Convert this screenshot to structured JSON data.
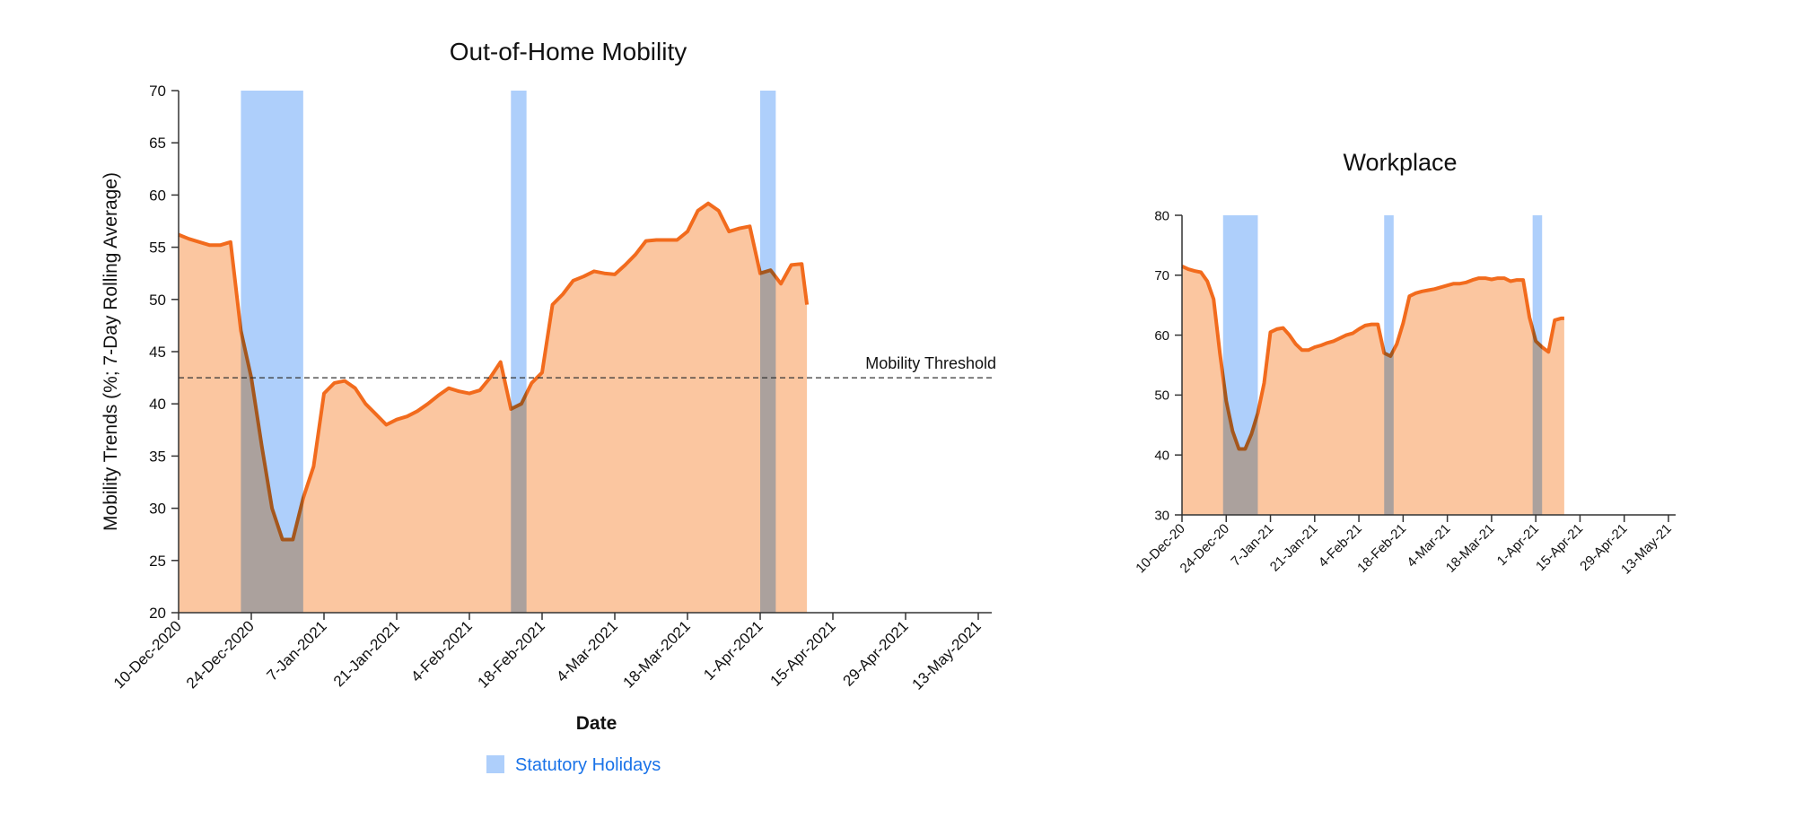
{
  "chart_data": [
    {
      "type": "area",
      "title": "Out-of-Home Mobility",
      "x_label": "Date",
      "y_label": "Mobility Trends (%; 7-Day Rolling Average)",
      "x": [
        "2020-12-10",
        "2020-12-12",
        "2020-12-14",
        "2020-12-16",
        "2020-12-18",
        "2020-12-20",
        "2020-12-22",
        "2020-12-24",
        "2020-12-26",
        "2020-12-28",
        "2020-12-30",
        "2021-01-01",
        "2021-01-03",
        "2021-01-05",
        "2021-01-07",
        "2021-01-09",
        "2021-01-11",
        "2021-01-13",
        "2021-01-15",
        "2021-01-17",
        "2021-01-19",
        "2021-01-21",
        "2021-01-23",
        "2021-01-25",
        "2021-01-27",
        "2021-01-29",
        "2021-01-31",
        "2021-02-02",
        "2021-02-04",
        "2021-02-06",
        "2021-02-08",
        "2021-02-10",
        "2021-02-12",
        "2021-02-14",
        "2021-02-16",
        "2021-02-18",
        "2021-02-20",
        "2021-02-22",
        "2021-02-24",
        "2021-02-26",
        "2021-02-28",
        "2021-03-02",
        "2021-03-04",
        "2021-03-06",
        "2021-03-08",
        "2021-03-10",
        "2021-03-12",
        "2021-03-14",
        "2021-03-16",
        "2021-03-18",
        "2021-03-20",
        "2021-03-22",
        "2021-03-24",
        "2021-03-26",
        "2021-03-28",
        "2021-03-30",
        "2021-04-01",
        "2021-04-03",
        "2021-04-05",
        "2021-04-07",
        "2021-04-09",
        "2021-04-10"
      ],
      "series": [
        {
          "color": "#f26b1d",
          "fill": "#fbc6a0",
          "values": [
            56.2,
            55.8,
            55.5,
            55.2,
            55.2,
            55.5,
            47,
            42.5,
            36,
            30,
            27,
            27,
            31,
            34,
            41,
            42,
            42.2,
            41.5,
            40,
            39,
            38,
            38.5,
            38.8,
            39.3,
            40,
            40.8,
            41.5,
            41.2,
            41,
            41.3,
            42.5,
            44,
            39.5,
            40,
            42,
            43,
            49.5,
            50.5,
            51.8,
            52.2,
            52.7,
            52.5,
            52.4,
            53.3,
            54.3,
            55.6,
            55.7,
            55.7,
            55.7,
            56.5,
            58.5,
            59.2,
            58.5,
            56.5,
            56.8,
            57,
            52.5,
            52.8,
            51.5,
            53.3,
            53.4,
            49.5
          ]
        }
      ],
      "holidays": [
        [
          "2020-12-22",
          "2021-01-03"
        ],
        [
          "2021-02-12",
          "2021-02-15"
        ],
        [
          "2021-04-01",
          "2021-04-04"
        ]
      ],
      "holiday_color": "#aecffb",
      "threshold": {
        "value": 42.5,
        "label": "Mobility Threshold"
      },
      "xlim": [
        "2020-12-10",
        "2021-05-13"
      ],
      "xticks": [
        {
          "value": "2020-12-10",
          "label": "10-Dec-2020"
        },
        {
          "value": "2020-12-24",
          "label": "24-Dec-2020"
        },
        {
          "value": "2021-01-07",
          "label": "7-Jan-2021"
        },
        {
          "value": "2021-01-21",
          "label": "21-Jan-2021"
        },
        {
          "value": "2021-02-04",
          "label": "4-Feb-2021"
        },
        {
          "value": "2021-02-18",
          "label": "18-Feb-2021"
        },
        {
          "value": "2021-03-04",
          "label": "4-Mar-2021"
        },
        {
          "value": "2021-03-18",
          "label": "18-Mar-2021"
        },
        {
          "value": "2021-04-01",
          "label": "1-Apr-2021"
        },
        {
          "value": "2021-04-15",
          "label": "15-Apr-2021"
        },
        {
          "value": "2021-04-29",
          "label": "29-Apr-2021"
        },
        {
          "value": "2021-05-13",
          "label": "13-May-2021"
        }
      ],
      "ylim": [
        20,
        70
      ],
      "yticks": [
        20,
        25,
        30,
        35,
        40,
        45,
        50,
        55,
        60,
        65,
        70
      ]
    },
    {
      "type": "area",
      "title": "Workplace",
      "x": [
        "2020-12-10",
        "2020-12-12",
        "2020-12-14",
        "2020-12-16",
        "2020-12-18",
        "2020-12-20",
        "2020-12-22",
        "2020-12-24",
        "2020-12-26",
        "2020-12-28",
        "2020-12-30",
        "2021-01-01",
        "2021-01-03",
        "2021-01-05",
        "2021-01-07",
        "2021-01-09",
        "2021-01-11",
        "2021-01-13",
        "2021-01-15",
        "2021-01-17",
        "2021-01-19",
        "2021-01-21",
        "2021-01-23",
        "2021-01-25",
        "2021-01-27",
        "2021-01-29",
        "2021-01-31",
        "2021-02-02",
        "2021-02-04",
        "2021-02-06",
        "2021-02-08",
        "2021-02-10",
        "2021-02-12",
        "2021-02-14",
        "2021-02-16",
        "2021-02-18",
        "2021-02-20",
        "2021-02-22",
        "2021-02-24",
        "2021-02-26",
        "2021-02-28",
        "2021-03-02",
        "2021-03-04",
        "2021-03-06",
        "2021-03-08",
        "2021-03-10",
        "2021-03-12",
        "2021-03-14",
        "2021-03-16",
        "2021-03-18",
        "2021-03-20",
        "2021-03-22",
        "2021-03-24",
        "2021-03-26",
        "2021-03-28",
        "2021-03-30",
        "2021-04-01",
        "2021-04-03",
        "2021-04-05",
        "2021-04-07",
        "2021-04-09",
        "2021-04-10"
      ],
      "series": [
        {
          "color": "#f26b1d",
          "fill": "#fbc6a0",
          "values": [
            71.5,
            71,
            70.7,
            70.5,
            69,
            66,
            57,
            49,
            44,
            41,
            41,
            43.5,
            47,
            52,
            60.5,
            61,
            61.2,
            60,
            58.5,
            57.5,
            57.5,
            58,
            58.3,
            58.7,
            59,
            59.5,
            60,
            60.3,
            61,
            61.6,
            61.8,
            61.8,
            57,
            56.5,
            58.5,
            62,
            66.5,
            67,
            67.3,
            67.5,
            67.7,
            68,
            68.3,
            68.6,
            68.6,
            68.8,
            69.2,
            69.5,
            69.5,
            69.3,
            69.5,
            69.5,
            69,
            69.2,
            69.2,
            63,
            59,
            58,
            57.2,
            62.5,
            62.8,
            62.8
          ]
        }
      ],
      "holidays": [
        [
          "2020-12-23",
          "2021-01-03"
        ],
        [
          "2021-02-12",
          "2021-02-15"
        ],
        [
          "2021-03-31",
          "2021-04-03"
        ]
      ],
      "holiday_color": "#aecffb",
      "xlim": [
        "2020-12-10",
        "2021-05-13"
      ],
      "xticks": [
        {
          "value": "2020-12-10",
          "label": "10-Dec-20"
        },
        {
          "value": "2020-12-24",
          "label": "24-Dec-20"
        },
        {
          "value": "2021-01-07",
          "label": "7-Jan-21"
        },
        {
          "value": "2021-01-21",
          "label": "21-Jan-21"
        },
        {
          "value": "2021-02-04",
          "label": "4-Feb-21"
        },
        {
          "value": "2021-02-18",
          "label": "18-Feb-21"
        },
        {
          "value": "2021-03-04",
          "label": "4-Mar-21"
        },
        {
          "value": "2021-03-18",
          "label": "18-Mar-21"
        },
        {
          "value": "2021-04-01",
          "label": "1-Apr-21"
        },
        {
          "value": "2021-04-15",
          "label": "15-Apr-21"
        },
        {
          "value": "2021-04-29",
          "label": "29-Apr-21"
        },
        {
          "value": "2021-05-13",
          "label": "13-May-21"
        }
      ],
      "ylim": [
        30,
        80
      ],
      "yticks": [
        30,
        40,
        50,
        60,
        70,
        80
      ]
    }
  ],
  "legend": {
    "label": "Statutory Holidays",
    "color": "#aecffb"
  }
}
